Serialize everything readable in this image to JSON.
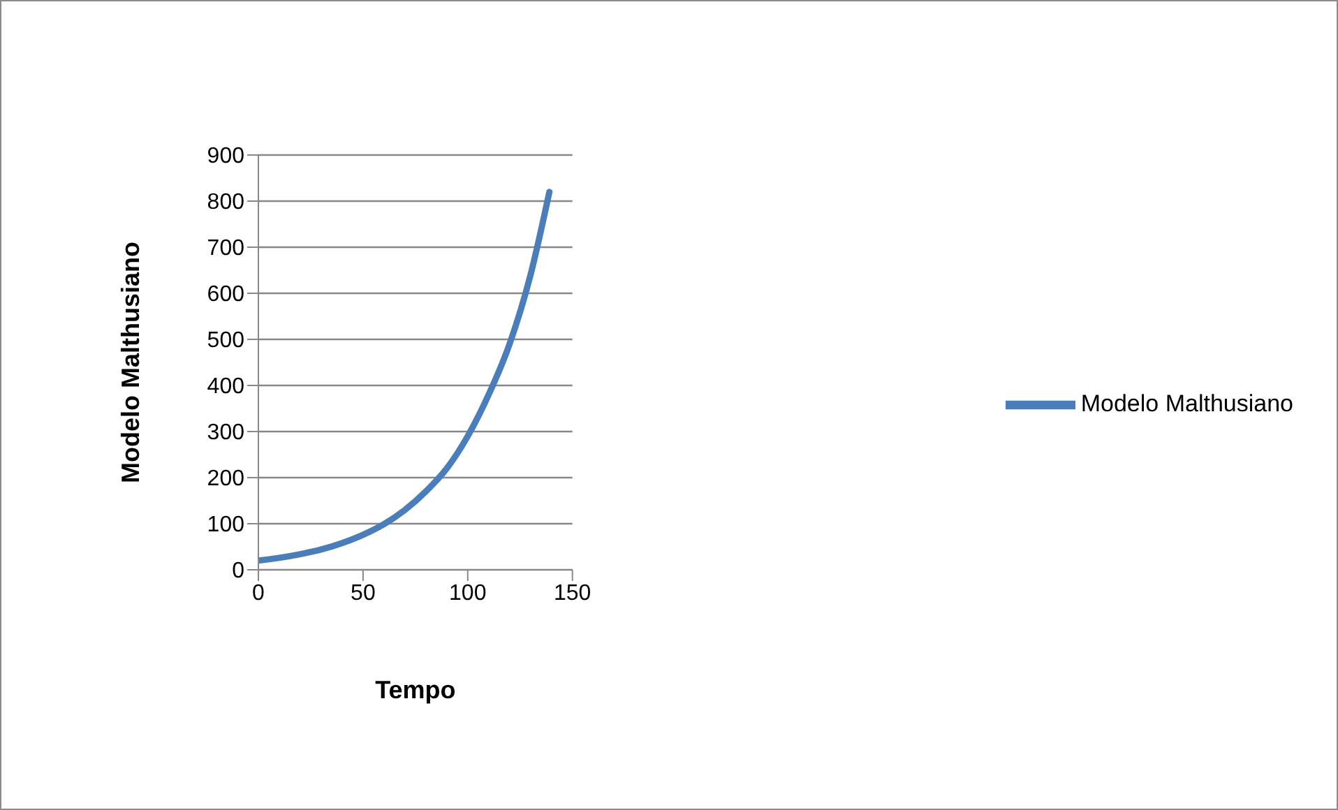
{
  "chart_data": {
    "type": "line",
    "xlabel": "Tempo",
    "ylabel": "Modelo Malthusiano",
    "x": [
      0,
      10,
      20,
      30,
      40,
      50,
      60,
      70,
      80,
      90,
      100,
      110,
      120,
      130,
      139
    ],
    "series": [
      {
        "name": "Modelo Malthusiano",
        "color": "#4a7ebb",
        "values": [
          20,
          26,
          34,
          44,
          58,
          76,
          99,
          130,
          170,
          220,
          290,
          380,
          490,
          640,
          820
        ]
      }
    ],
    "xlim": [
      0,
      150
    ],
    "xticks": [
      0,
      50,
      100,
      150
    ],
    "ylim": [
      0,
      900
    ],
    "yticks": [
      0,
      100,
      200,
      300,
      400,
      500,
      600,
      700,
      800,
      900
    ],
    "grid": "y",
    "legend": "right",
    "marker": "none",
    "line_style": "solid"
  }
}
